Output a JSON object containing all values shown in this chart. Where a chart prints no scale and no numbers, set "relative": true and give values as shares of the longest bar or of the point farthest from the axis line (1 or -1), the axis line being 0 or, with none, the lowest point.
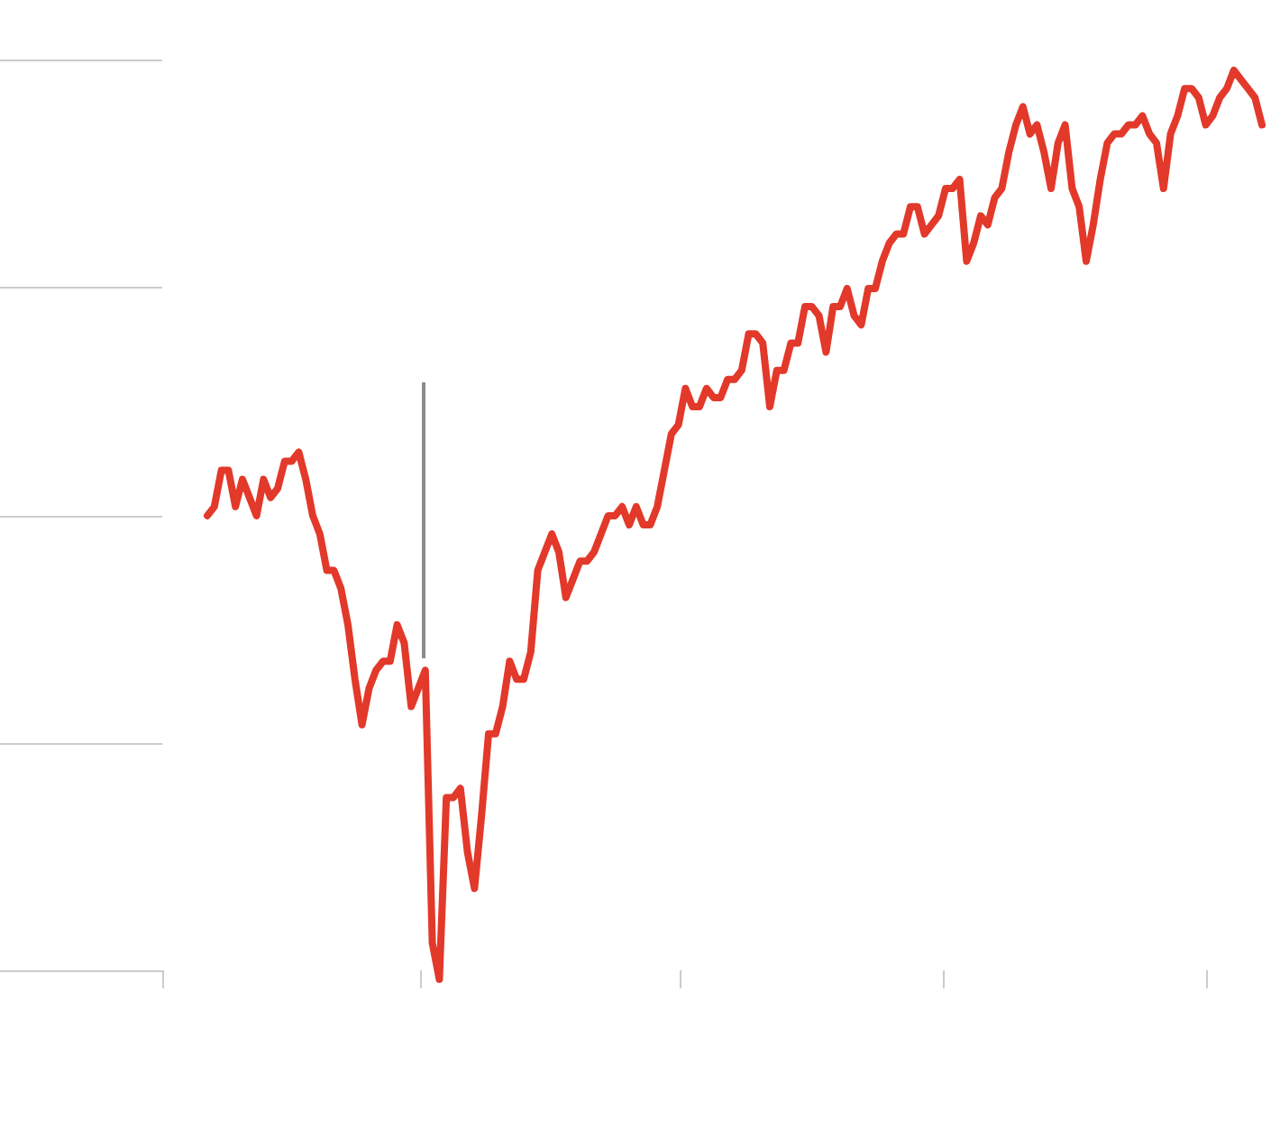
{
  "chart_data": {
    "type": "line",
    "relative": true,
    "categories": [
      null,
      null,
      null,
      null,
      null,
      null,
      null,
      null,
      null,
      null,
      null,
      null,
      null,
      null,
      null,
      null,
      null,
      null,
      null,
      null,
      null,
      null,
      null,
      null,
      null,
      null,
      null,
      null,
      null,
      null,
      null,
      null,
      null,
      null,
      null,
      null,
      null,
      null,
      null,
      null,
      null,
      null,
      null,
      null,
      null,
      null,
      null,
      null,
      null,
      null,
      null,
      null,
      null,
      null,
      null,
      null,
      null,
      null,
      null,
      null,
      null,
      null,
      null,
      null,
      null,
      null,
      null,
      null,
      null,
      null,
      null,
      null,
      null,
      null,
      null,
      null,
      null,
      null,
      null,
      null,
      null,
      null,
      null,
      null,
      null,
      null,
      null,
      null,
      null,
      null,
      null,
      null,
      null,
      null,
      null,
      null,
      null,
      null,
      null,
      null,
      null,
      null,
      null,
      null,
      null,
      null,
      null,
      null,
      null,
      null,
      null,
      null,
      null,
      null,
      null,
      null,
      null,
      null,
      null,
      null,
      null,
      null,
      null,
      null,
      null,
      null,
      null,
      null,
      null,
      null,
      null,
      null,
      null,
      null,
      null,
      null,
      null,
      null,
      null,
      null,
      null,
      null,
      null,
      null,
      null,
      null,
      null,
      null,
      null,
      null,
      null
    ],
    "values": [
      0.51,
      0.52,
      0.56,
      0.56,
      0.52,
      0.55,
      0.53,
      0.51,
      0.55,
      0.53,
      0.54,
      0.57,
      0.57,
      0.58,
      0.55,
      0.51,
      0.49,
      0.45,
      0.45,
      0.43,
      0.39,
      0.33,
      0.28,
      0.32,
      0.34,
      0.35,
      0.35,
      0.39,
      0.37,
      0.3,
      0.32,
      0.34,
      0.04,
      0,
      0.2,
      0.2,
      0.21,
      0.14,
      0.1,
      0.18,
      0.27,
      0.27,
      0.3,
      0.35,
      0.33,
      0.33,
      0.36,
      0.45,
      0.47,
      0.49,
      0.47,
      0.42,
      0.44,
      0.46,
      0.46,
      0.47,
      0.49,
      0.51,
      0.51,
      0.52,
      0.5,
      0.52,
      0.5,
      0.5,
      0.52,
      0.56,
      0.6,
      0.61,
      0.65,
      0.63,
      0.63,
      0.65,
      0.64,
      0.64,
      0.66,
      0.66,
      0.67,
      0.71,
      0.71,
      0.7,
      0.63,
      0.67,
      0.67,
      0.7,
      0.7,
      0.74,
      0.74,
      0.73,
      0.69,
      0.74,
      0.74,
      0.76,
      0.73,
      0.72,
      0.76,
      0.76,
      0.79,
      0.81,
      0.82,
      0.82,
      0.85,
      0.85,
      0.82,
      0.83,
      0.84,
      0.87,
      0.87,
      0.88,
      0.79,
      0.81,
      0.84,
      0.83,
      0.86,
      0.87,
      0.91,
      0.94,
      0.96,
      0.93,
      0.94,
      0.91,
      0.87,
      0.92,
      0.94,
      0.87,
      0.85,
      0.79,
      0.83,
      0.88,
      0.92,
      0.93,
      0.93,
      0.94,
      0.94,
      0.95,
      0.93,
      0.92,
      0.87,
      0.93,
      0.95,
      0.98,
      0.98,
      0.97,
      0.94,
      0.95,
      0.97,
      0.98,
      1,
      0.99,
      0.98,
      0.97,
      0.94
    ],
    "color": "#e2392a"
  }
}
